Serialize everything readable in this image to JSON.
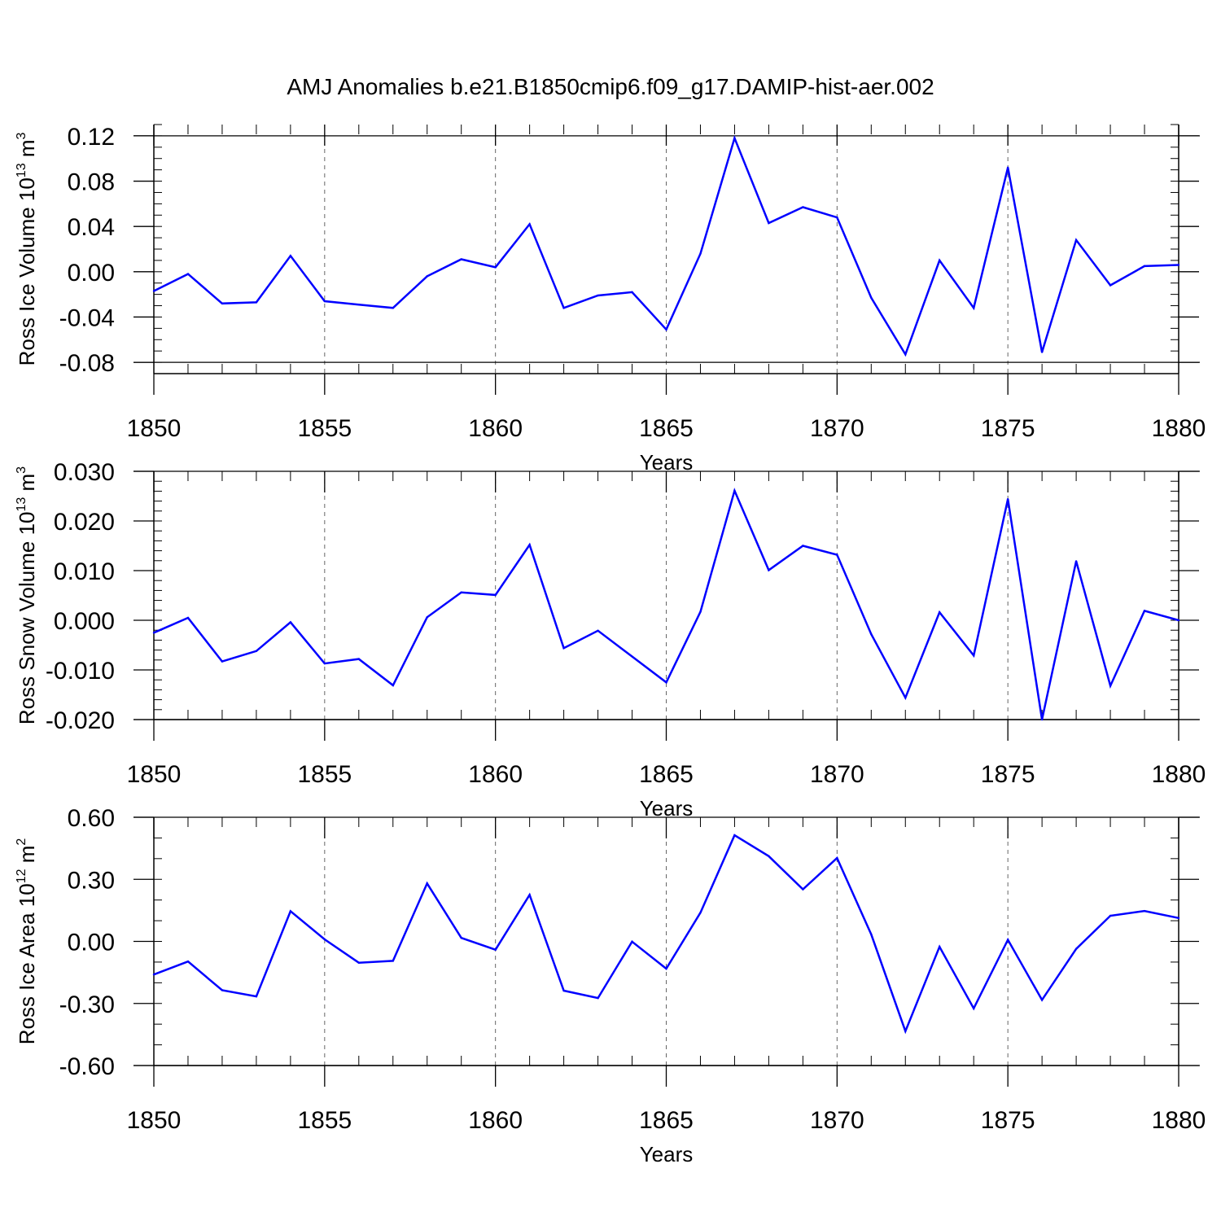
{
  "title": "AMJ Anomalies b.e21.B1850cmip6.f09_g17.DAMIP-hist-aer.002",
  "colors": {
    "line": "#0000ff",
    "axis": "#000000",
    "grid": "#666666"
  },
  "chart_data": [
    {
      "type": "line",
      "ylabel": "Ross Ice Volume 10",
      "ylabel_exp": "13",
      "ylabel_unit": " m",
      "ylabel_unit_exp": "3",
      "xlabel": "Years",
      "xlim": [
        1850,
        1880
      ],
      "ylim": [
        -0.09,
        0.13
      ],
      "x_ticks": [
        1850,
        1855,
        1860,
        1865,
        1870,
        1875,
        1880
      ],
      "x_tick_labels": [
        "1850",
        "1855",
        "1860",
        "1865",
        "1870",
        "1875",
        "1880"
      ],
      "y_ticks": [
        -0.08,
        -0.04,
        0.0,
        0.04,
        0.08,
        0.12
      ],
      "y_tick_labels": [
        "-0.08",
        "-0.04",
        "0.00",
        "0.04",
        "0.08",
        "0.12"
      ],
      "y_minor_step": 0.01,
      "grid": "vertical dashed at major x ticks",
      "x": [
        1850,
        1851,
        1852,
        1853,
        1854,
        1855,
        1856,
        1857,
        1858,
        1859,
        1860,
        1861,
        1862,
        1863,
        1864,
        1865,
        1866,
        1867,
        1868,
        1869,
        1870,
        1871,
        1872,
        1873,
        1874,
        1875,
        1876,
        1877,
        1878,
        1879,
        1880
      ],
      "values": [
        -0.017,
        -0.002,
        -0.028,
        -0.027,
        0.014,
        -0.026,
        -0.029,
        -0.032,
        -0.004,
        0.011,
        0.004,
        0.042,
        -0.032,
        -0.021,
        -0.018,
        -0.051,
        0.016,
        0.118,
        0.043,
        0.057,
        0.048,
        -0.023,
        -0.073,
        0.01,
        -0.032,
        0.092,
        -0.071,
        0.028,
        -0.012,
        0.005,
        0.006
      ]
    },
    {
      "type": "line",
      "ylabel": "Ross Snow Volume 10",
      "ylabel_exp": "13",
      "ylabel_unit": " m",
      "ylabel_unit_exp": "3",
      "xlabel": "Years",
      "xlim": [
        1850,
        1880
      ],
      "ylim": [
        -0.02,
        0.03
      ],
      "x_ticks": [
        1850,
        1855,
        1860,
        1865,
        1870,
        1875,
        1880
      ],
      "x_tick_labels": [
        "1850",
        "1855",
        "1860",
        "1865",
        "1870",
        "1875",
        "1880"
      ],
      "y_ticks": [
        -0.02,
        -0.01,
        0.0,
        0.01,
        0.02,
        0.03
      ],
      "y_tick_labels": [
        "-0.020",
        "-0.010",
        "0.000",
        "0.010",
        "0.020",
        "0.030"
      ],
      "y_minor_step": 0.002,
      "grid": "vertical dashed at major x ticks",
      "x": [
        1850,
        1851,
        1852,
        1853,
        1854,
        1855,
        1856,
        1857,
        1858,
        1859,
        1860,
        1861,
        1862,
        1863,
        1864,
        1865,
        1866,
        1867,
        1868,
        1869,
        1870,
        1871,
        1872,
        1873,
        1874,
        1875,
        1876,
        1877,
        1878,
        1879,
        1880
      ],
      "values": [
        -0.0025,
        0.0005,
        -0.0083,
        -0.0062,
        -0.0004,
        -0.0087,
        -0.0078,
        -0.0131,
        0.0006,
        0.0056,
        0.0051,
        0.0152,
        -0.0056,
        -0.0021,
        -0.0073,
        -0.0125,
        0.0017,
        0.0261,
        0.0101,
        0.015,
        0.0132,
        -0.0028,
        -0.0156,
        0.0016,
        -0.0071,
        0.0244,
        -0.02,
        0.0119,
        -0.0132,
        0.0019,
        0.0
      ]
    },
    {
      "type": "line",
      "ylabel": "Ross Ice Area 10",
      "ylabel_exp": "12",
      "ylabel_unit": " m",
      "ylabel_unit_exp": "2",
      "xlabel": "Years",
      "xlim": [
        1850,
        1880
      ],
      "ylim": [
        -0.6,
        0.6
      ],
      "x_ticks": [
        1850,
        1855,
        1860,
        1865,
        1870,
        1875,
        1880
      ],
      "x_tick_labels": [
        "1850",
        "1855",
        "1860",
        "1865",
        "1870",
        "1875",
        "1880"
      ],
      "y_ticks": [
        -0.6,
        -0.3,
        0.0,
        0.3,
        0.6
      ],
      "y_tick_labels": [
        "-0.60",
        "-0.30",
        "0.00",
        "0.30",
        "0.60"
      ],
      "y_minor_step": 0.1,
      "grid": "vertical dashed at major x ticks",
      "x": [
        1850,
        1851,
        1852,
        1853,
        1854,
        1855,
        1856,
        1857,
        1858,
        1859,
        1860,
        1861,
        1862,
        1863,
        1864,
        1865,
        1866,
        1867,
        1868,
        1869,
        1870,
        1871,
        1872,
        1873,
        1874,
        1875,
        1876,
        1877,
        1878,
        1879,
        1880
      ],
      "values": [
        -0.16,
        -0.097,
        -0.236,
        -0.266,
        0.146,
        0.01,
        -0.103,
        -0.094,
        0.28,
        0.017,
        -0.04,
        0.225,
        -0.238,
        -0.274,
        -0.001,
        -0.132,
        0.139,
        0.513,
        0.412,
        0.252,
        0.403,
        0.034,
        -0.434,
        -0.026,
        -0.324,
        0.008,
        -0.283,
        -0.036,
        0.124,
        0.147,
        0.113
      ]
    }
  ]
}
